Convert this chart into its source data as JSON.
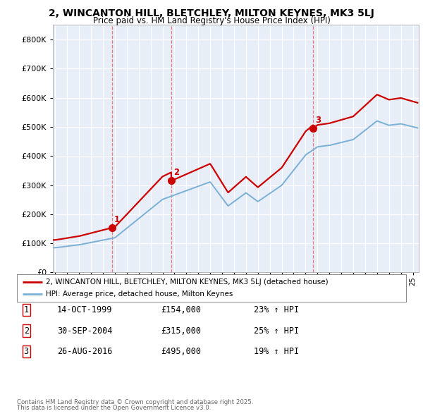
{
  "title": "2, WINCANTON HILL, BLETCHLEY, MILTON KEYNES, MK3 5LJ",
  "subtitle": "Price paid vs. HM Land Registry's House Price Index (HPI)",
  "sale_dates": [
    1999.79,
    2004.75,
    2016.65
  ],
  "sale_prices": [
    154000,
    315000,
    495000
  ],
  "sale_labels": [
    "1",
    "2",
    "3"
  ],
  "sale_info": [
    [
      "1",
      "14-OCT-1999",
      "£154,000",
      "23% ↑ HPI"
    ],
    [
      "2",
      "30-SEP-2004",
      "£315,000",
      "25% ↑ HPI"
    ],
    [
      "3",
      "26-AUG-2016",
      "£495,000",
      "19% ↑ HPI"
    ]
  ],
  "legend_line1": "2, WINCANTON HILL, BLETCHLEY, MILTON KEYNES, MK3 5LJ (detached house)",
  "legend_line2": "HPI: Average price, detached house, Milton Keynes",
  "footer_line1": "Contains HM Land Registry data © Crown copyright and database right 2025.",
  "footer_line2": "This data is licensed under the Open Government Licence v3.0.",
  "red_color": "#cc0000",
  "blue_color": "#7ab0d4",
  "vline_color": "#e87070",
  "background_color": "#e8eef8",
  "ylim": [
    0,
    850000
  ],
  "yticks": [
    0,
    100000,
    200000,
    300000,
    400000,
    500000,
    600000,
    700000,
    800000
  ],
  "xmin": 1994.8,
  "xmax": 2025.5
}
